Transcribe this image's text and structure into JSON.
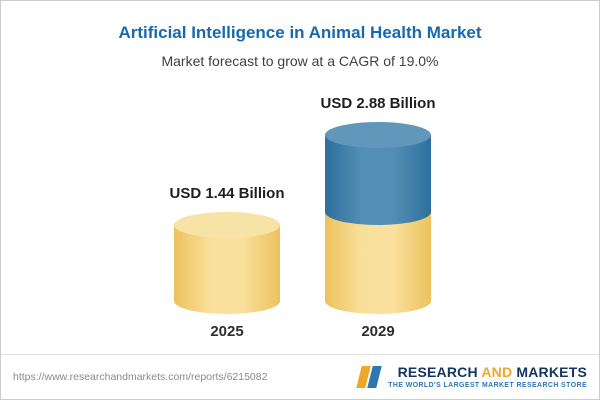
{
  "header": {
    "title": "Artificial Intelligence in Animal Health Market",
    "subtitle": "Market forecast to grow at a CAGR of 19.0%"
  },
  "chart_data": {
    "type": "bar",
    "shape": "cylinder",
    "title": "Artificial Intelligence in Animal Health Market",
    "subtitle": "Market forecast to grow at a CAGR of 19.0%",
    "unit": "USD Billion",
    "cagr_pct": 19.0,
    "categories": [
      "2025",
      "2029"
    ],
    "values": [
      1.44,
      2.88
    ],
    "data_labels": [
      "USD 1.44 Billion",
      "USD 2.88 Billion"
    ],
    "bars": [
      {
        "category": "2025",
        "total": 1.44,
        "segments": [
          {
            "value": 1.44,
            "color": "gold"
          }
        ]
      },
      {
        "category": "2029",
        "total": 2.88,
        "segments": [
          {
            "value": 1.44,
            "color": "gold"
          },
          {
            "value": 1.44,
            "color": "blue"
          }
        ]
      }
    ],
    "palette": {
      "gold": {
        "edge": "#ecc25e",
        "center": "#f9e09c",
        "cap": "#f7e3a6"
      },
      "blue": {
        "edge": "#2e6f9e",
        "center": "#538fb4",
        "cap": "#6097ba"
      }
    },
    "grid": false,
    "legend": false,
    "ylim": [
      0,
      3
    ]
  },
  "footer": {
    "url": "https://www.researchandmarkets.com/reports/6215082",
    "brand": {
      "research": "RESEARCH",
      "and": "AND",
      "markets": "MARKETS",
      "tagline": "THE WORLD'S LARGEST MARKET RESEARCH STORE"
    }
  },
  "colors": {
    "title_blue": "#1769ae",
    "bar_gold": "#f6d880",
    "bar_blue": "#3a7ca8",
    "brand_navy": "#15355f",
    "brand_gold": "#eca826",
    "tagline_blue": "#2e76b2"
  }
}
